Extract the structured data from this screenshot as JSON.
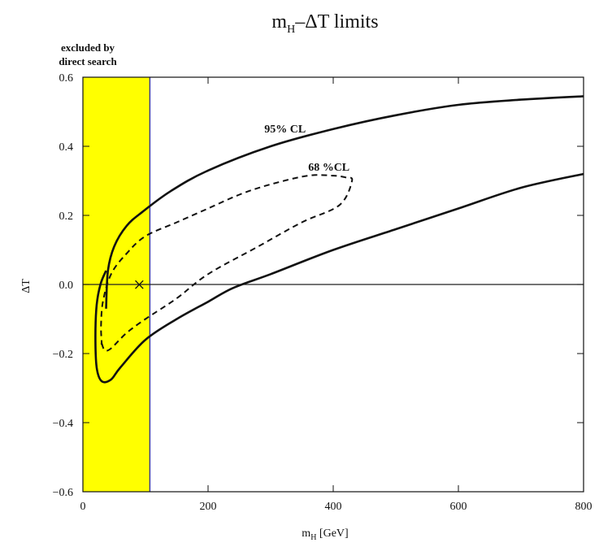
{
  "chart_data": {
    "type": "line",
    "title": "m_H–ΔT limits",
    "xlabel": "m_H [GeV]",
    "ylabel": "ΔT",
    "xlim": [
      0,
      800
    ],
    "ylim": [
      -0.6,
      0.6
    ],
    "x_ticks": [
      0,
      200,
      400,
      600,
      800
    ],
    "y_ticks": [
      -0.6,
      -0.4,
      -0.2,
      0.0,
      0.2,
      0.4,
      0.6
    ],
    "y_tick_labels": [
      "−0.6",
      "−0.4",
      "−0.2",
      "0.0",
      "0.2",
      "0.4",
      "0.6"
    ],
    "excluded_region": {
      "label": "excluded by direct search",
      "label_lines": [
        "excluded by",
        "direct search"
      ],
      "x_range": [
        0,
        107
      ],
      "color": "#ffff00"
    },
    "reference_line_y": 0.0,
    "best_fit_marker": {
      "x": 90,
      "y": 0.0,
      "symbol": "×"
    },
    "series": [
      {
        "name": "95% CL",
        "style": "solid",
        "label": "95% CL",
        "label_at": [
          290,
          0.44
        ],
        "contour_upper": [
          [
            37,
            -0.07
          ],
          [
            40,
            0.04
          ],
          [
            50,
            0.11
          ],
          [
            70,
            0.17
          ],
          [
            95,
            0.21
          ],
          [
            140,
            0.27
          ],
          [
            200,
            0.33
          ],
          [
            300,
            0.4
          ],
          [
            400,
            0.45
          ],
          [
            500,
            0.49
          ],
          [
            600,
            0.52
          ],
          [
            700,
            0.535
          ],
          [
            800,
            0.545
          ]
        ],
        "contour_lower": [
          [
            800,
            0.32
          ],
          [
            700,
            0.28
          ],
          [
            600,
            0.22
          ],
          [
            500,
            0.16
          ],
          [
            400,
            0.1
          ],
          [
            300,
            0.03
          ],
          [
            240,
            -0.01
          ],
          [
            200,
            -0.05
          ],
          [
            150,
            -0.1
          ],
          [
            100,
            -0.16
          ],
          [
            60,
            -0.24
          ],
          [
            45,
            -0.275
          ],
          [
            30,
            -0.28
          ],
          [
            22,
            -0.24
          ],
          [
            20,
            -0.15
          ],
          [
            22,
            -0.06
          ],
          [
            28,
            0.0
          ],
          [
            37,
            0.04
          ]
        ]
      },
      {
        "name": "68% CL",
        "style": "dashed",
        "label": "68 %CL",
        "label_at": [
          360,
          0.33
        ],
        "contour": [
          [
            30,
            -0.17
          ],
          [
            35,
            -0.19
          ],
          [
            45,
            -0.185
          ],
          [
            70,
            -0.14
          ],
          [
            100,
            -0.1
          ],
          [
            150,
            -0.04
          ],
          [
            200,
            0.03
          ],
          [
            280,
            0.11
          ],
          [
            350,
            0.18
          ],
          [
            410,
            0.23
          ],
          [
            430,
            0.3
          ],
          [
            420,
            0.31
          ],
          [
            400,
            0.315
          ],
          [
            360,
            0.315
          ],
          [
            300,
            0.29
          ],
          [
            250,
            0.26
          ],
          [
            200,
            0.22
          ],
          [
            150,
            0.18
          ],
          [
            100,
            0.14
          ],
          [
            70,
            0.09
          ],
          [
            45,
            0.03
          ],
          [
            32,
            -0.05
          ],
          [
            29,
            -0.12
          ],
          [
            30,
            -0.17
          ]
        ]
      }
    ],
    "grid": false,
    "legend": "none"
  },
  "labels": {
    "title_main": "m",
    "title_sub": "H",
    "title_rest": "–ΔT limits",
    "xlabel_main": "m",
    "xlabel_sub": "H",
    "xlabel_rest": " [GeV]",
    "ylabel": "ΔT"
  }
}
